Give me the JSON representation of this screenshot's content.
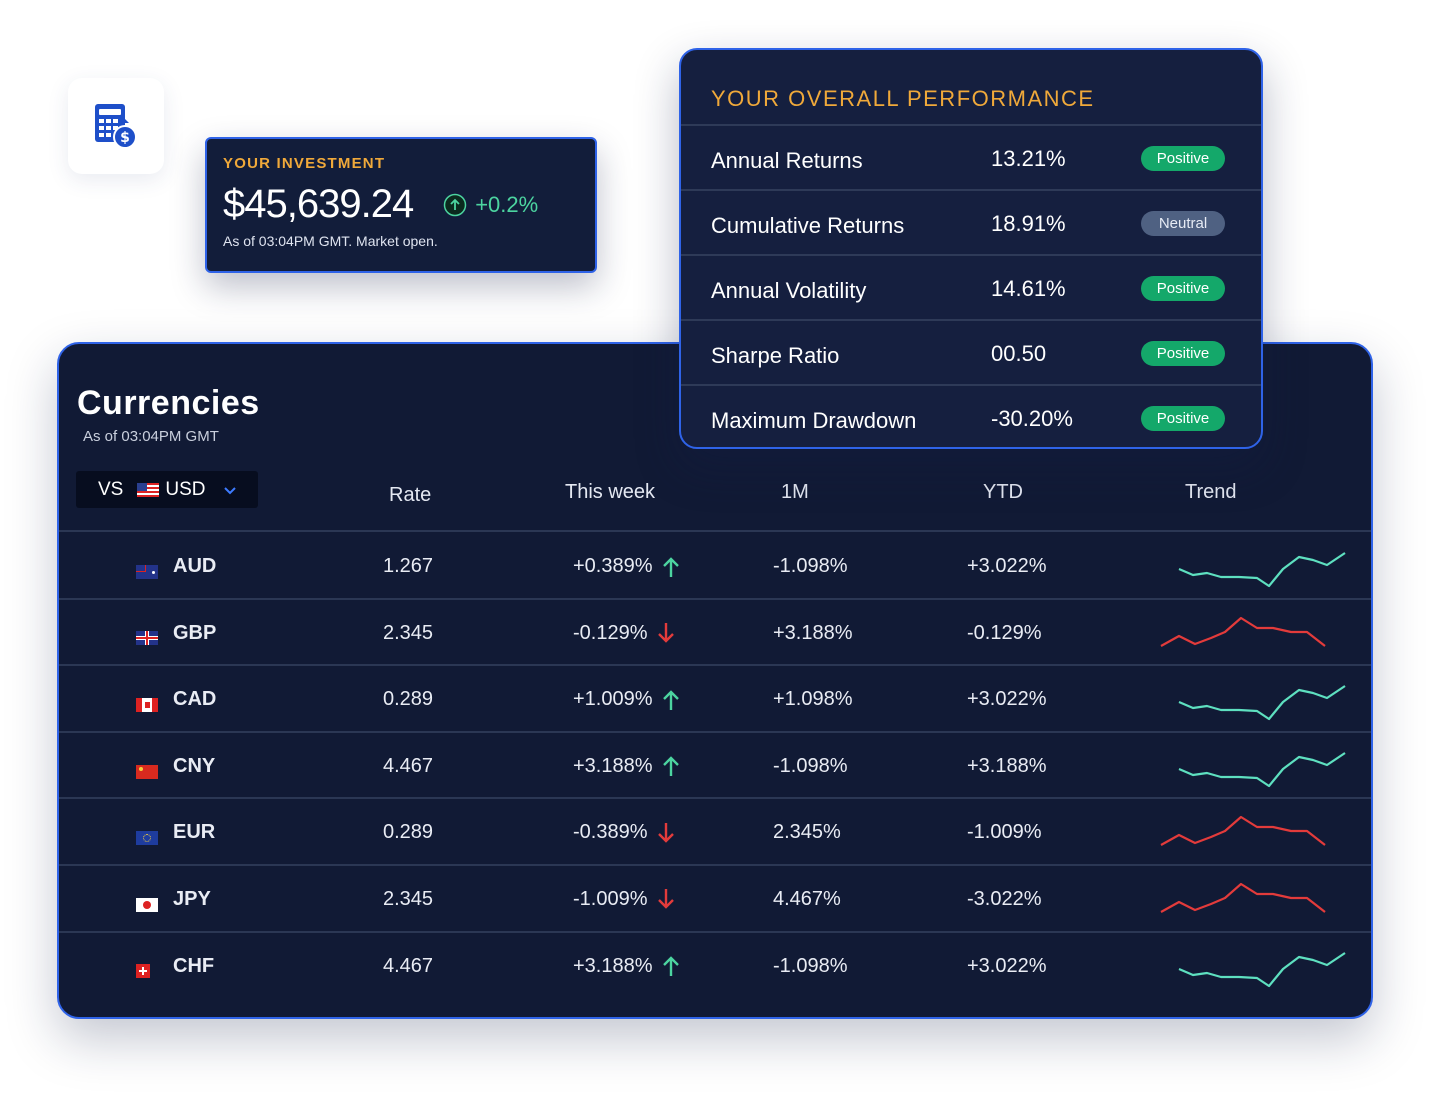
{
  "colors": {
    "accent": "#2f63e8",
    "gold": "#f0a93a",
    "up": "#4cd4a0",
    "down": "#e33b3b",
    "card_bg": "#111a35"
  },
  "app_icon": "finance-calculator-icon",
  "investment": {
    "label": "YOUR INVESTMENT",
    "amount": "$45,639.24",
    "change": "+0.2%",
    "as_of": "As of 03:04PM GMT. Market open."
  },
  "performance": {
    "title": "YOUR OVERALL PERFORMANCE",
    "rows": [
      {
        "label": "Annual Returns",
        "value": "13.21%",
        "status": "Positive"
      },
      {
        "label": "Cumulative Returns",
        "value": "18.91%",
        "status": "Neutral"
      },
      {
        "label": "Annual Volatility",
        "value": "14.61%",
        "status": "Positive"
      },
      {
        "label": "Sharpe Ratio",
        "value": "00.50",
        "status": "Positive"
      },
      {
        "label": "Maximum Drawdown",
        "value": "-30.20%",
        "status": "Positive"
      }
    ]
  },
  "currencies": {
    "title": "Currencies",
    "subtitle": "As of 03:04PM GMT",
    "select": {
      "prefix": "VS",
      "value": "USD"
    },
    "columns": {
      "rate": "Rate",
      "week": "This week",
      "m1": "1M",
      "ytd": "YTD",
      "trend": "Trend"
    },
    "rows": [
      {
        "code": "AUD",
        "rate": "1.267",
        "week": "+0.389%",
        "week_dir": "up",
        "m1": "-1.098%",
        "ytd": "+3.022%",
        "trend_dir": "up"
      },
      {
        "code": "GBP",
        "rate": "2.345",
        "week": "-0.129%",
        "week_dir": "down",
        "m1": "+3.188%",
        "ytd": "-0.129%",
        "trend_dir": "down"
      },
      {
        "code": "CAD",
        "rate": "0.289",
        "week": "+1.009%",
        "week_dir": "up",
        "m1": "+1.098%",
        "ytd": "+3.022%",
        "trend_dir": "up"
      },
      {
        "code": "CNY",
        "rate": "4.467",
        "week": "+3.188%",
        "week_dir": "up",
        "m1": "-1.098%",
        "ytd": "+3.188%",
        "trend_dir": "up"
      },
      {
        "code": "EUR",
        "rate": "0.289",
        "week": "-0.389%",
        "week_dir": "down",
        "m1": "2.345%",
        "ytd": "-1.009%",
        "trend_dir": "down"
      },
      {
        "code": "JPY",
        "rate": "2.345",
        "week": "-1.009%",
        "week_dir": "down",
        "m1": "4.467%",
        "ytd": "-3.022%",
        "trend_dir": "down"
      },
      {
        "code": "CHF",
        "rate": "4.467",
        "week": "+3.188%",
        "week_dir": "up",
        "m1": "-1.098%",
        "ytd": "+3.022%",
        "trend_dir": "up"
      }
    ]
  }
}
